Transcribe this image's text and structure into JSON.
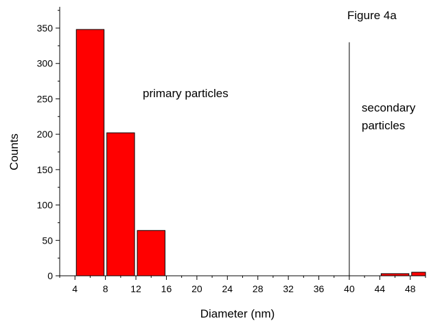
{
  "chart_data": {
    "type": "bar",
    "title": "Figure 4a",
    "xlabel": "Diameter (nm)",
    "ylabel": "Counts",
    "xlim": [
      2,
      50
    ],
    "ylim": [
      0,
      380
    ],
    "x_ticks": [
      4,
      8,
      12,
      16,
      20,
      24,
      28,
      32,
      36,
      40,
      44,
      48
    ],
    "y_ticks": [
      0,
      50,
      100,
      150,
      200,
      250,
      300,
      350
    ],
    "bin_width": 4,
    "bars": [
      {
        "x": 6,
        "value": 348
      },
      {
        "x": 10,
        "value": 202
      },
      {
        "x": 14,
        "value": 64
      },
      {
        "x": 18,
        "value": 0
      },
      {
        "x": 22,
        "value": 0
      },
      {
        "x": 26,
        "value": 0
      },
      {
        "x": 30,
        "value": 0
      },
      {
        "x": 34,
        "value": 0
      },
      {
        "x": 38,
        "value": 0
      },
      {
        "x": 42,
        "value": 0
      },
      {
        "x": 46,
        "value": 3
      },
      {
        "x": 50,
        "value": 5
      }
    ],
    "bar_color": "#ff0000",
    "bar_edge_color": "#000000",
    "divider_line": {
      "x": 40,
      "y_top": 330
    },
    "annotations": {
      "primary": "primary particles",
      "secondary_line1": "secondary",
      "secondary_line2": "particles"
    },
    "grid": false,
    "legend": "none"
  }
}
